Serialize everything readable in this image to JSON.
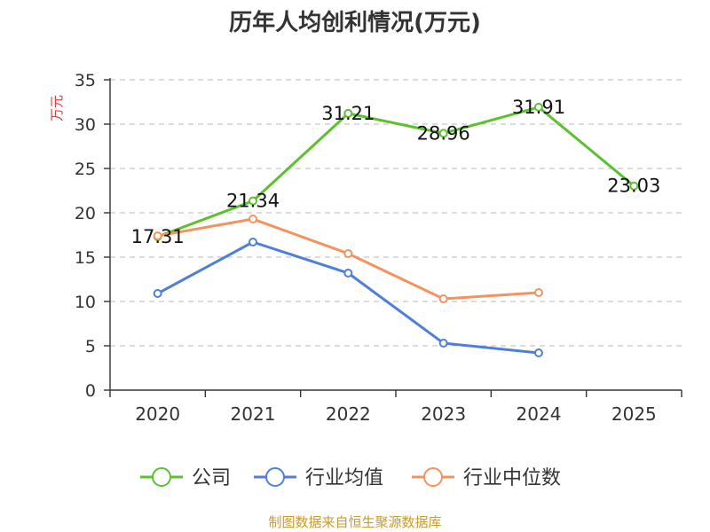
{
  "chart_data": {
    "type": "line",
    "title": "历年人均创利情况(万元)",
    "xlabel": "",
    "ylabel": "万元",
    "ylim": [
      0,
      35
    ],
    "yticks": [
      0,
      5,
      10,
      15,
      20,
      25,
      30,
      35
    ],
    "categories": [
      "2020",
      "2021",
      "2022",
      "2023",
      "2024",
      "2025"
    ],
    "grid": true,
    "legend_position": "bottom",
    "series": [
      {
        "name": "公司",
        "color": "#5cc12f",
        "values": [
          17.31,
          21.34,
          31.21,
          28.96,
          31.91,
          23.03
        ],
        "labels": [
          "17.31",
          "21.34",
          "31.21",
          "28.96",
          "31.91",
          "23.03"
        ]
      },
      {
        "name": "行业均值",
        "color": "#4f7fd6",
        "values": [
          10.9,
          16.7,
          13.2,
          5.3,
          4.2,
          null
        ]
      },
      {
        "name": "行业中位数",
        "color": "#f5935f",
        "values": [
          17.4,
          19.3,
          15.4,
          10.3,
          11.0,
          null
        ]
      }
    ]
  },
  "source_text": "制图数据来自恒生聚源数据库",
  "colors": {
    "source": "#c99a2e",
    "ylabel": "#e0393e",
    "axis": "#333333",
    "grid": "#c8c8c8"
  }
}
